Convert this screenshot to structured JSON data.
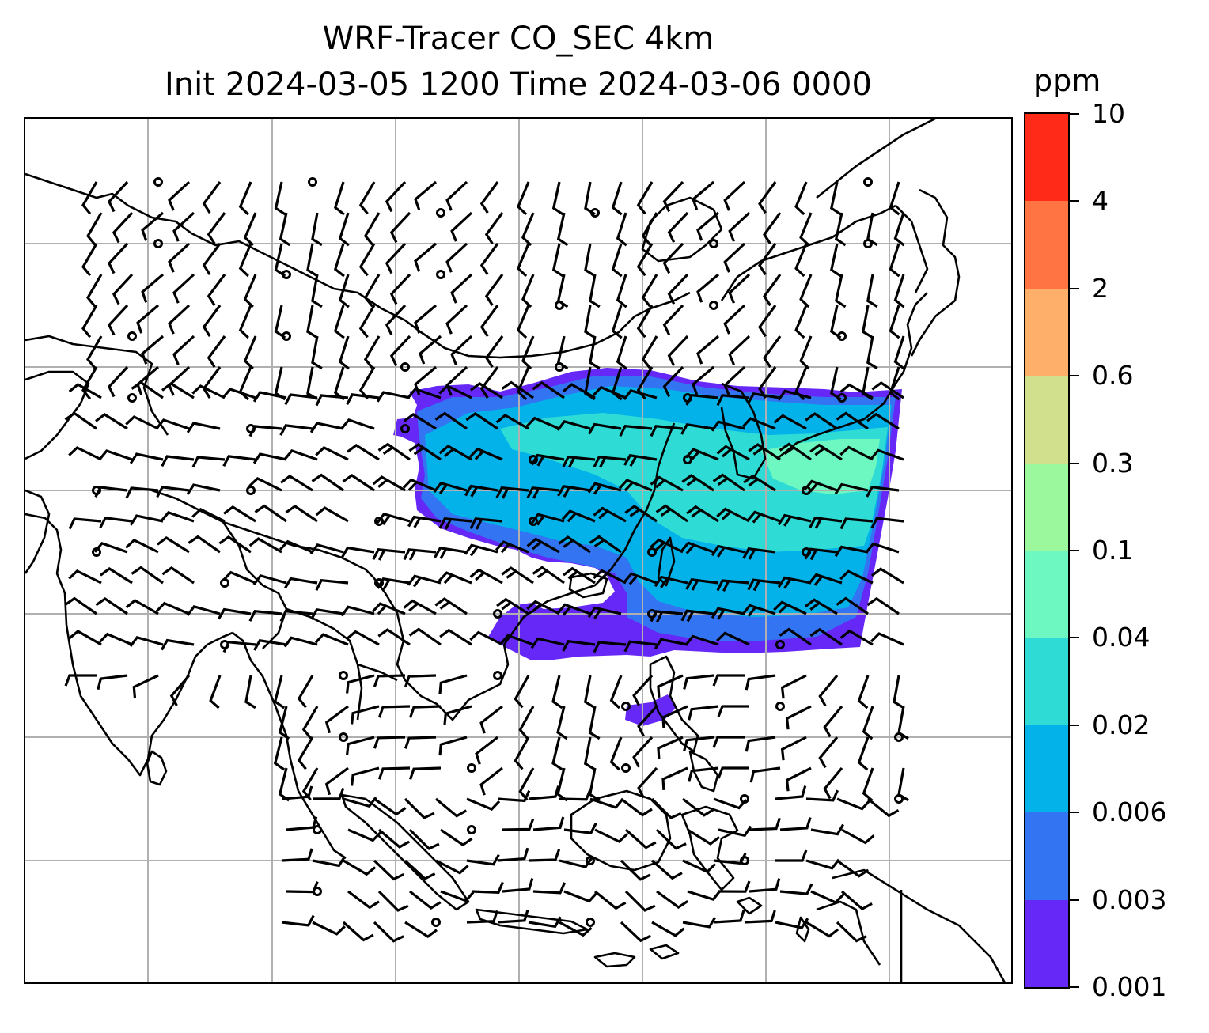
{
  "title": {
    "line1": "WRF-Tracer CO_SEC 4km",
    "line2": "Init 2024-03-05 1200 Time 2024-03-06 0000"
  },
  "colorbar": {
    "unit": "ppm",
    "levels": [
      "0.001",
      "0.003",
      "0.006",
      "0.02",
      "0.04",
      "0.1",
      "0.3",
      "0.6",
      "2",
      "4",
      "10"
    ],
    "colors": [
      "#6528f7",
      "#3274f2",
      "#04b2ea",
      "#2edbd5",
      "#6cf8c0",
      "#9cf89c",
      "#d0e08c",
      "#feb06a",
      "#ff7442",
      "#ff2a17"
    ]
  },
  "map": {
    "graticule": "on",
    "plume_colors": {
      "outer": "#6528f7",
      "edge": "#3274f2",
      "core": "#04b2ea",
      "inner": "#2edbd5",
      "peak": "#6cf8c0"
    }
  }
}
